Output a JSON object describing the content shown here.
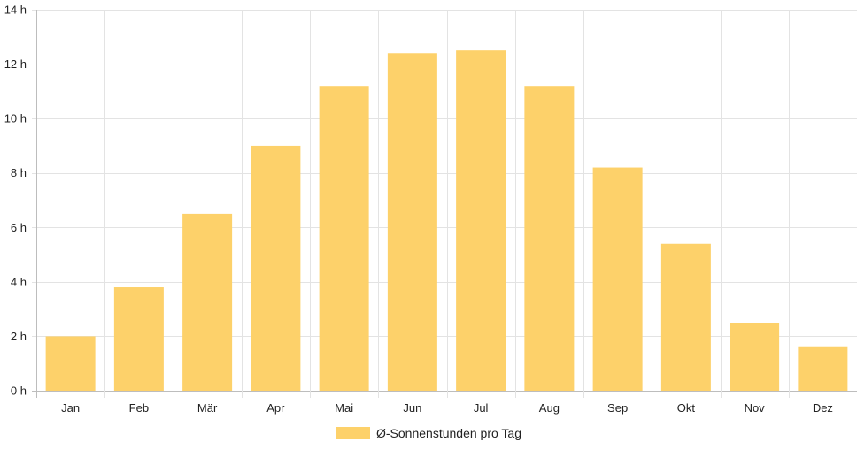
{
  "chart_data": {
    "type": "bar",
    "categories": [
      "Jan",
      "Feb",
      "Mär",
      "Apr",
      "Mai",
      "Jun",
      "Jul",
      "Aug",
      "Sep",
      "Okt",
      "Nov",
      "Dez"
    ],
    "series": [
      {
        "name": "Ø-Sonnenstunden pro Tag",
        "values": [
          2.0,
          3.8,
          6.5,
          9.0,
          11.2,
          12.4,
          12.5,
          11.2,
          8.2,
          5.4,
          2.5,
          1.6
        ]
      }
    ],
    "ylim": [
      0,
      14
    ],
    "yticks": [
      0,
      2,
      4,
      6,
      8,
      10,
      12,
      14
    ],
    "y_unit_suffix": " h",
    "grid": true,
    "legend_position": "bottom-center",
    "colors": {
      "bar": "#fdd16a",
      "grid": "#e3e3e3",
      "axis": "#bdbdbd"
    }
  }
}
